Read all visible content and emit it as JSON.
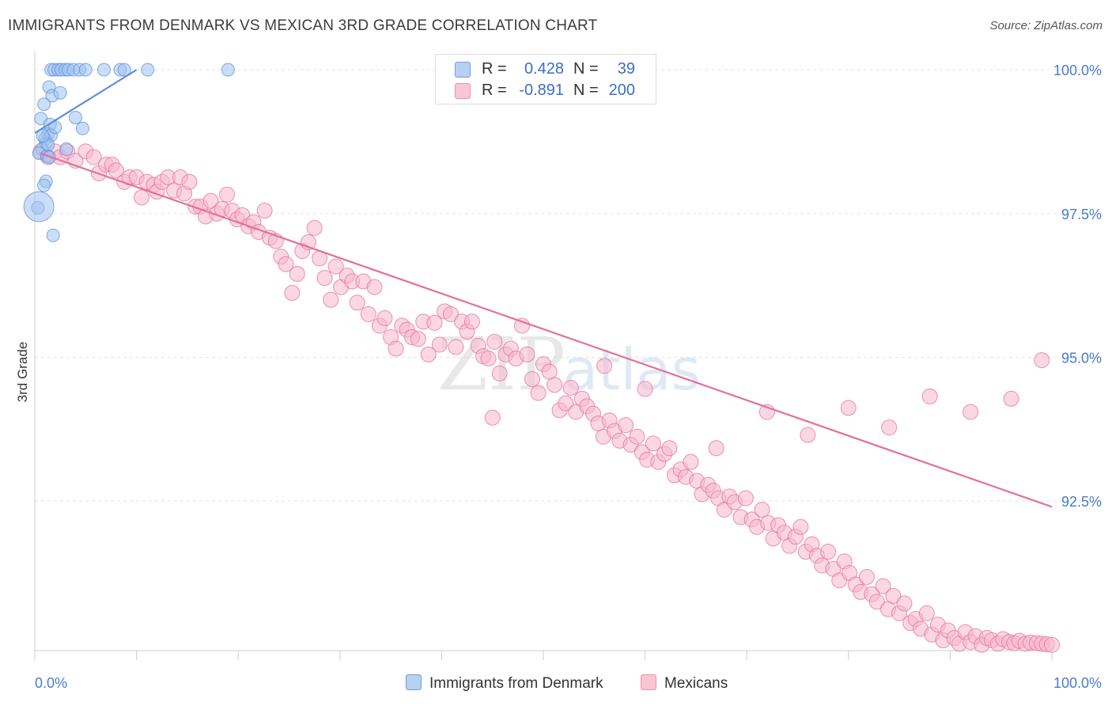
{
  "title": "IMMIGRANTS FROM DENMARK VS MEXICAN 3RD GRADE CORRELATION CHART",
  "source": "Source: ZipAtlas.com",
  "watermark": {
    "zip": "ZIP",
    "atlas": "atlas"
  },
  "legend": {
    "rows": [
      {
        "r_label": "R =",
        "r_value": "0.428",
        "n_label": "N =",
        "n_value": "39",
        "color": "#8ab4e8"
      },
      {
        "r_label": "R =",
        "r_value": "-0.891",
        "n_label": "N =",
        "n_value": "200",
        "color": "#f4a6bf"
      }
    ]
  },
  "bottom_legend": {
    "series1": "Immigrants from Denmark",
    "series2": "Mexicans"
  },
  "chart_data": {
    "type": "scatter",
    "title": "IMMIGRANTS FROM DENMARK VS MEXICAN 3RD GRADE CORRELATION CHART",
    "ylabel": "3rd Grade",
    "xlabel": "",
    "x_tick_labels": [
      "0.0%",
      "100.0%"
    ],
    "y_tick_labels": [
      "100.0%",
      "97.5%",
      "95.0%",
      "92.5%"
    ],
    "y_tick_values": [
      100.0,
      97.5,
      95.0,
      92.5
    ],
    "xlim": [
      0,
      100
    ],
    "ylim": [
      89.9,
      100.25
    ],
    "grid": true,
    "series": [
      {
        "name": "Immigrants from Denmark",
        "color": "#5b8fd9",
        "fill": "#9fc3f0",
        "trend": {
          "x": [
            0,
            10
          ],
          "y": [
            98.9,
            100.0
          ]
        },
        "points": [
          [
            1.6,
            100
          ],
          [
            1.9,
            100
          ],
          [
            2.3,
            100
          ],
          [
            2.6,
            100
          ],
          [
            3.0,
            100
          ],
          [
            3.3,
            100
          ],
          [
            3.8,
            100
          ],
          [
            4.4,
            100
          ],
          [
            5.0,
            100
          ],
          [
            6.8,
            100
          ],
          [
            8.4,
            100
          ],
          [
            8.8,
            100
          ],
          [
            11.1,
            100
          ],
          [
            19.0,
            100
          ],
          [
            1.4,
            99.7
          ],
          [
            1.7,
            99.55
          ],
          [
            2.5,
            99.6
          ],
          [
            0.9,
            99.4
          ],
          [
            0.6,
            99.15
          ],
          [
            1.5,
            99.05
          ],
          [
            1.3,
            98.88
          ],
          [
            1.0,
            98.8
          ],
          [
            1.1,
            98.72
          ],
          [
            0.7,
            98.62
          ],
          [
            3.1,
            98.62
          ],
          [
            0.4,
            98.55
          ],
          [
            1.2,
            98.5
          ],
          [
            1.4,
            98.48
          ],
          [
            1.1,
            98.06
          ],
          [
            0.9,
            97.99
          ],
          [
            4.7,
            98.98
          ],
          [
            4.0,
            99.17
          ],
          [
            0.3,
            97.6
          ],
          [
            1.8,
            97.12
          ],
          [
            1.6,
            98.86
          ],
          [
            1.3,
            98.7
          ],
          [
            0.4,
            97.62
          ],
          [
            2.0,
            99.0
          ],
          [
            0.8,
            98.85
          ]
        ]
      },
      {
        "name": "Mexicans",
        "color": "#e46f9a",
        "fill": "#f7b7cc",
        "trend": {
          "x": [
            0.5,
            100
          ],
          "y": [
            98.55,
            92.4
          ]
        },
        "points": [
          [
            0.6,
            98.58
          ],
          [
            1.3,
            98.48
          ],
          [
            2.0,
            98.58
          ],
          [
            2.5,
            98.48
          ],
          [
            3.2,
            98.58
          ],
          [
            4.0,
            98.42
          ],
          [
            5.0,
            98.58
          ],
          [
            5.8,
            98.48
          ],
          [
            6.3,
            98.2
          ],
          [
            7.0,
            98.35
          ],
          [
            7.6,
            98.35
          ],
          [
            8.0,
            98.25
          ],
          [
            8.8,
            98.05
          ],
          [
            9.3,
            98.13
          ],
          [
            10.0,
            98.13
          ],
          [
            10.5,
            97.78
          ],
          [
            11.0,
            98.05
          ],
          [
            11.7,
            98.0
          ],
          [
            12.0,
            97.88
          ],
          [
            12.5,
            98.05
          ],
          [
            13.1,
            98.13
          ],
          [
            13.7,
            97.9
          ],
          [
            14.3,
            98.13
          ],
          [
            14.7,
            97.85
          ],
          [
            15.2,
            98.05
          ],
          [
            15.8,
            97.62
          ],
          [
            16.3,
            97.62
          ],
          [
            16.8,
            97.45
          ],
          [
            17.3,
            97.72
          ],
          [
            17.9,
            97.5
          ],
          [
            18.4,
            97.58
          ],
          [
            18.9,
            97.83
          ],
          [
            19.4,
            97.55
          ],
          [
            19.9,
            97.4
          ],
          [
            20.4,
            97.47
          ],
          [
            21.0,
            97.28
          ],
          [
            21.5,
            97.35
          ],
          [
            22.0,
            97.18
          ],
          [
            22.6,
            97.55
          ],
          [
            23.1,
            97.08
          ],
          [
            23.7,
            97.02
          ],
          [
            24.2,
            96.75
          ],
          [
            24.7,
            96.62
          ],
          [
            25.3,
            96.12
          ],
          [
            25.8,
            96.45
          ],
          [
            26.3,
            96.85
          ],
          [
            26.9,
            97.0
          ],
          [
            27.5,
            97.25
          ],
          [
            28.0,
            96.72
          ],
          [
            28.5,
            96.38
          ],
          [
            29.1,
            96.0
          ],
          [
            29.6,
            96.58
          ],
          [
            30.1,
            96.22
          ],
          [
            30.7,
            96.42
          ],
          [
            31.2,
            96.32
          ],
          [
            31.7,
            95.95
          ],
          [
            32.3,
            96.32
          ],
          [
            32.8,
            95.75
          ],
          [
            33.4,
            96.22
          ],
          [
            33.9,
            95.55
          ],
          [
            34.4,
            95.68
          ],
          [
            35.0,
            95.35
          ],
          [
            35.5,
            95.15
          ],
          [
            36.1,
            95.55
          ],
          [
            36.6,
            95.48
          ],
          [
            37.1,
            95.35
          ],
          [
            37.7,
            95.32
          ],
          [
            38.2,
            95.62
          ],
          [
            38.7,
            95.05
          ],
          [
            39.3,
            95.6
          ],
          [
            39.8,
            95.22
          ],
          [
            40.3,
            95.8
          ],
          [
            40.9,
            95.75
          ],
          [
            41.4,
            95.18
          ],
          [
            42.0,
            95.62
          ],
          [
            42.5,
            95.45
          ],
          [
            43.0,
            95.62
          ],
          [
            43.6,
            95.2
          ],
          [
            44.1,
            95.02
          ],
          [
            44.6,
            94.98
          ],
          [
            45.2,
            95.27
          ],
          [
            45.7,
            94.72
          ],
          [
            46.3,
            95.05
          ],
          [
            46.8,
            95.15
          ],
          [
            47.3,
            94.98
          ],
          [
            47.9,
            95.55
          ],
          [
            48.4,
            95.05
          ],
          [
            48.9,
            94.62
          ],
          [
            49.5,
            94.38
          ],
          [
            50.0,
            94.88
          ],
          [
            50.6,
            94.75
          ],
          [
            51.1,
            94.52
          ],
          [
            51.6,
            94.08
          ],
          [
            52.2,
            94.2
          ],
          [
            52.7,
            94.47
          ],
          [
            53.2,
            94.05
          ],
          [
            53.8,
            94.28
          ],
          [
            54.3,
            94.15
          ],
          [
            54.9,
            94.02
          ],
          [
            55.4,
            93.85
          ],
          [
            55.9,
            93.62
          ],
          [
            56.5,
            93.9
          ],
          [
            57.0,
            93.72
          ],
          [
            57.5,
            93.55
          ],
          [
            58.1,
            93.82
          ],
          [
            58.6,
            93.48
          ],
          [
            59.2,
            93.62
          ],
          [
            59.7,
            93.35
          ],
          [
            60.2,
            93.22
          ],
          [
            60.8,
            93.5
          ],
          [
            61.3,
            93.18
          ],
          [
            61.9,
            93.32
          ],
          [
            62.4,
            93.42
          ],
          [
            62.9,
            92.95
          ],
          [
            63.5,
            93.05
          ],
          [
            64.0,
            92.92
          ],
          [
            64.5,
            93.18
          ],
          [
            65.1,
            92.85
          ],
          [
            65.6,
            92.62
          ],
          [
            66.2,
            92.78
          ],
          [
            66.7,
            92.68
          ],
          [
            67.2,
            92.55
          ],
          [
            67.8,
            92.35
          ],
          [
            68.3,
            92.58
          ],
          [
            68.8,
            92.48
          ],
          [
            69.4,
            92.22
          ],
          [
            69.9,
            92.55
          ],
          [
            70.5,
            92.18
          ],
          [
            71.0,
            92.05
          ],
          [
            71.5,
            92.35
          ],
          [
            72.1,
            92.12
          ],
          [
            72.6,
            91.85
          ],
          [
            73.1,
            92.08
          ],
          [
            73.7,
            91.95
          ],
          [
            74.2,
            91.72
          ],
          [
            74.8,
            91.88
          ],
          [
            75.3,
            92.05
          ],
          [
            75.8,
            91.62
          ],
          [
            76.4,
            91.75
          ],
          [
            76.9,
            91.55
          ],
          [
            77.4,
            91.38
          ],
          [
            78.0,
            91.62
          ],
          [
            78.5,
            91.32
          ],
          [
            79.1,
            91.12
          ],
          [
            79.6,
            91.45
          ],
          [
            80.1,
            91.25
          ],
          [
            80.7,
            91.05
          ],
          [
            81.2,
            90.92
          ],
          [
            81.8,
            91.18
          ],
          [
            82.3,
            90.88
          ],
          [
            82.8,
            90.75
          ],
          [
            83.4,
            91.02
          ],
          [
            83.9,
            90.62
          ],
          [
            84.4,
            90.85
          ],
          [
            85.0,
            90.55
          ],
          [
            85.5,
            90.72
          ],
          [
            86.1,
            90.38
          ],
          [
            86.6,
            90.45
          ],
          [
            87.1,
            90.28
          ],
          [
            87.7,
            90.55
          ],
          [
            88.2,
            90.18
          ],
          [
            88.8,
            90.35
          ],
          [
            89.3,
            90.08
          ],
          [
            89.8,
            90.25
          ],
          [
            90.4,
            90.12
          ],
          [
            90.9,
            90.02
          ],
          [
            91.5,
            90.22
          ],
          [
            92.0,
            90.05
          ],
          [
            92.5,
            90.15
          ],
          [
            93.1,
            90.0
          ],
          [
            93.6,
            90.12
          ],
          [
            94.1,
            90.08
          ],
          [
            94.7,
            90.02
          ],
          [
            95.2,
            90.1
          ],
          [
            95.8,
            90.05
          ],
          [
            96.3,
            90.03
          ],
          [
            96.8,
            90.07
          ],
          [
            97.4,
            90.02
          ],
          [
            97.9,
            90.04
          ],
          [
            98.5,
            90.03
          ],
          [
            99.0,
            90.02
          ],
          [
            99.5,
            90.01
          ],
          [
            100.0,
            90.0
          ],
          [
            45.0,
            93.95
          ],
          [
            56.0,
            94.85
          ],
          [
            60.0,
            94.45
          ],
          [
            67.0,
            93.42
          ],
          [
            72.0,
            94.05
          ],
          [
            76.0,
            93.65
          ],
          [
            80.0,
            94.12
          ],
          [
            84.0,
            93.78
          ],
          [
            88.0,
            94.32
          ],
          [
            92.0,
            94.05
          ],
          [
            96.0,
            94.28
          ],
          [
            99.0,
            94.95
          ]
        ]
      }
    ]
  }
}
